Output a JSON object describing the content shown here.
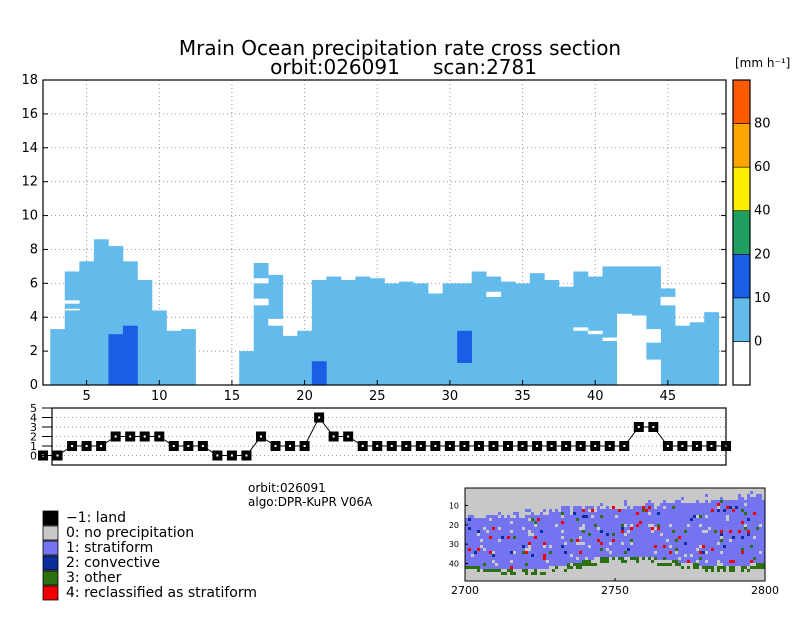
{
  "chart_data": [
    {
      "type": "heatmap",
      "title": "Mrain Ocean precipitation rate cross section",
      "subtitle_orbit": "orbit:026091",
      "subtitle_scan": "scan:2781",
      "xlim": [
        2,
        49
      ],
      "ylim": [
        0,
        18
      ],
      "x_ticks": [
        5,
        10,
        15,
        20,
        25,
        30,
        35,
        40,
        45
      ],
      "y_ticks": [
        0,
        2,
        4,
        6,
        8,
        10,
        12,
        14,
        16,
        18
      ],
      "grid": true,
      "colorbar": {
        "unit_label": "[mm h⁻¹]",
        "tick_labels": [
          "0",
          "10",
          "20",
          "40",
          "60",
          "80"
        ],
        "bin_colors": [
          "#ffffff",
          "#63bbec",
          "#1a5ee5",
          "#20a060",
          "#ffee00",
          "#ffa500",
          "#ff5a00"
        ]
      },
      "columns": [
        {
          "x": 3,
          "top": 3.3
        },
        {
          "x": 4,
          "top": 6.7
        },
        {
          "x": 5,
          "top": 7.3
        },
        {
          "x": 6,
          "top": 8.6
        },
        {
          "x": 7,
          "top": 8.2
        },
        {
          "x": 8,
          "top": 7.3
        },
        {
          "x": 9,
          "top": 6.2
        },
        {
          "x": 10,
          "top": 4.4
        },
        {
          "x": 11,
          "top": 3.2
        },
        {
          "x": 12,
          "top": 3.3
        },
        {
          "x": 16,
          "top": 2.0
        },
        {
          "x": 17,
          "top": 7.2
        },
        {
          "x": 18,
          "top": 6.5
        },
        {
          "x": 19,
          "top": 2.9
        },
        {
          "x": 20,
          "top": 3.2
        },
        {
          "x": 21,
          "top": 6.2
        },
        {
          "x": 22,
          "top": 6.4
        },
        {
          "x": 23,
          "top": 6.2
        },
        {
          "x": 24,
          "top": 6.4
        },
        {
          "x": 25,
          "top": 6.3
        },
        {
          "x": 26,
          "top": 6.0
        },
        {
          "x": 27,
          "top": 6.1
        },
        {
          "x": 28,
          "top": 6.0
        },
        {
          "x": 29,
          "top": 5.4
        },
        {
          "x": 30,
          "top": 6.0
        },
        {
          "x": 31,
          "top": 6.0
        },
        {
          "x": 32,
          "top": 6.7
        },
        {
          "x": 33,
          "top": 6.4
        },
        {
          "x": 34,
          "top": 6.1
        },
        {
          "x": 35,
          "top": 6.0
        },
        {
          "x": 36,
          "top": 6.6
        },
        {
          "x": 37,
          "top": 6.2
        },
        {
          "x": 38,
          "top": 5.8
        },
        {
          "x": 39,
          "top": 6.7
        },
        {
          "x": 40,
          "top": 6.4
        },
        {
          "x": 41,
          "top": 7.0
        },
        {
          "x": 42,
          "top": 7.0
        },
        {
          "x": 43,
          "top": 7.0
        },
        {
          "x": 44,
          "top": 7.0
        },
        {
          "x": 45,
          "top": 5.7
        },
        {
          "x": 46,
          "top": 3.5
        },
        {
          "x": 47,
          "top": 3.7
        },
        {
          "x": 48,
          "top": 4.3
        }
      ],
      "convective_cells": [
        {
          "x": 7,
          "bottom": 0,
          "top": 3.0
        },
        {
          "x": 8,
          "bottom": 0,
          "top": 3.5
        },
        {
          "x": 21,
          "bottom": 0,
          "top": 1.4
        },
        {
          "x": 31,
          "bottom": 1.3,
          "top": 3.2
        }
      ],
      "gaps": [
        {
          "x": 4,
          "bottom": 4.8,
          "top": 5.0
        },
        {
          "x": 4,
          "bottom": 4.4,
          "top": 4.5
        },
        {
          "x": 17,
          "bottom": 6.0,
          "top": 6.3
        },
        {
          "x": 17,
          "bottom": 4.7,
          "top": 5.1
        },
        {
          "x": 18,
          "bottom": 3.5,
          "top": 3.9
        },
        {
          "x": 33,
          "bottom": 5.2,
          "top": 5.5
        },
        {
          "x": 39,
          "bottom": 3.2,
          "top": 3.4
        },
        {
          "x": 40,
          "bottom": 3.0,
          "top": 3.2
        },
        {
          "x": 41,
          "bottom": 2.6,
          "top": 2.8
        },
        {
          "x": 42,
          "bottom": 0,
          "top": 4.2
        },
        {
          "x": 43,
          "bottom": 0,
          "top": 4.1
        },
        {
          "x": 44,
          "bottom": 2.5,
          "top": 3.3
        },
        {
          "x": 44,
          "bottom": 0,
          "top": 1.5
        },
        {
          "x": 45,
          "bottom": 4.7,
          "top": 5.2
        }
      ]
    },
    {
      "type": "line",
      "ylim": [
        -1,
        5
      ],
      "y_ticks": [
        0,
        1,
        2,
        3,
        4,
        5
      ],
      "xlim": [
        2,
        49
      ],
      "grid": true,
      "x": [
        2,
        3,
        4,
        5,
        6,
        7,
        8,
        9,
        10,
        11,
        12,
        13,
        14,
        15,
        16,
        17,
        18,
        19,
        20,
        21,
        22,
        23,
        24,
        25,
        26,
        27,
        28,
        29,
        30,
        31,
        32,
        33,
        34,
        35,
        36,
        37,
        38,
        39,
        40,
        41,
        42,
        43,
        44,
        45,
        46,
        47,
        48,
        49
      ],
      "values": [
        0,
        0,
        1,
        1,
        1,
        2,
        2,
        2,
        2,
        1,
        1,
        1,
        0,
        0,
        0,
        2,
        1,
        1,
        1,
        4,
        2,
        2,
        1,
        1,
        1,
        1,
        1,
        1,
        1,
        1,
        1,
        1,
        1,
        1,
        1,
        1,
        1,
        1,
        1,
        1,
        1,
        3,
        3,
        1,
        1,
        1,
        1,
        1
      ]
    },
    {
      "type": "heatmap",
      "orbit": "orbit:026091",
      "algo": "algo:DPR-KuPR V06A",
      "x_ticks": [
        2700,
        2750,
        2800
      ],
      "y_ticks": [
        10,
        20,
        30,
        40
      ],
      "xlim": [
        2700,
        2800
      ],
      "ylim": [
        49,
        1
      ]
    }
  ],
  "legend": {
    "items": [
      {
        "label": "−1: land",
        "color": "#000000"
      },
      {
        "label": "0: no precipitation",
        "color": "#c8c8c8"
      },
      {
        "label": "1: stratiform",
        "color": "#7474f0"
      },
      {
        "label": "2: convective",
        "color": "#0a2e9c"
      },
      {
        "label": "3: other",
        "color": "#2d7010"
      },
      {
        "label": "4: reclassified as stratiform",
        "color": "#f00000"
      }
    ]
  },
  "info": {
    "orbit": "orbit:026091",
    "algo": "algo:DPR-KuPR V06A"
  }
}
